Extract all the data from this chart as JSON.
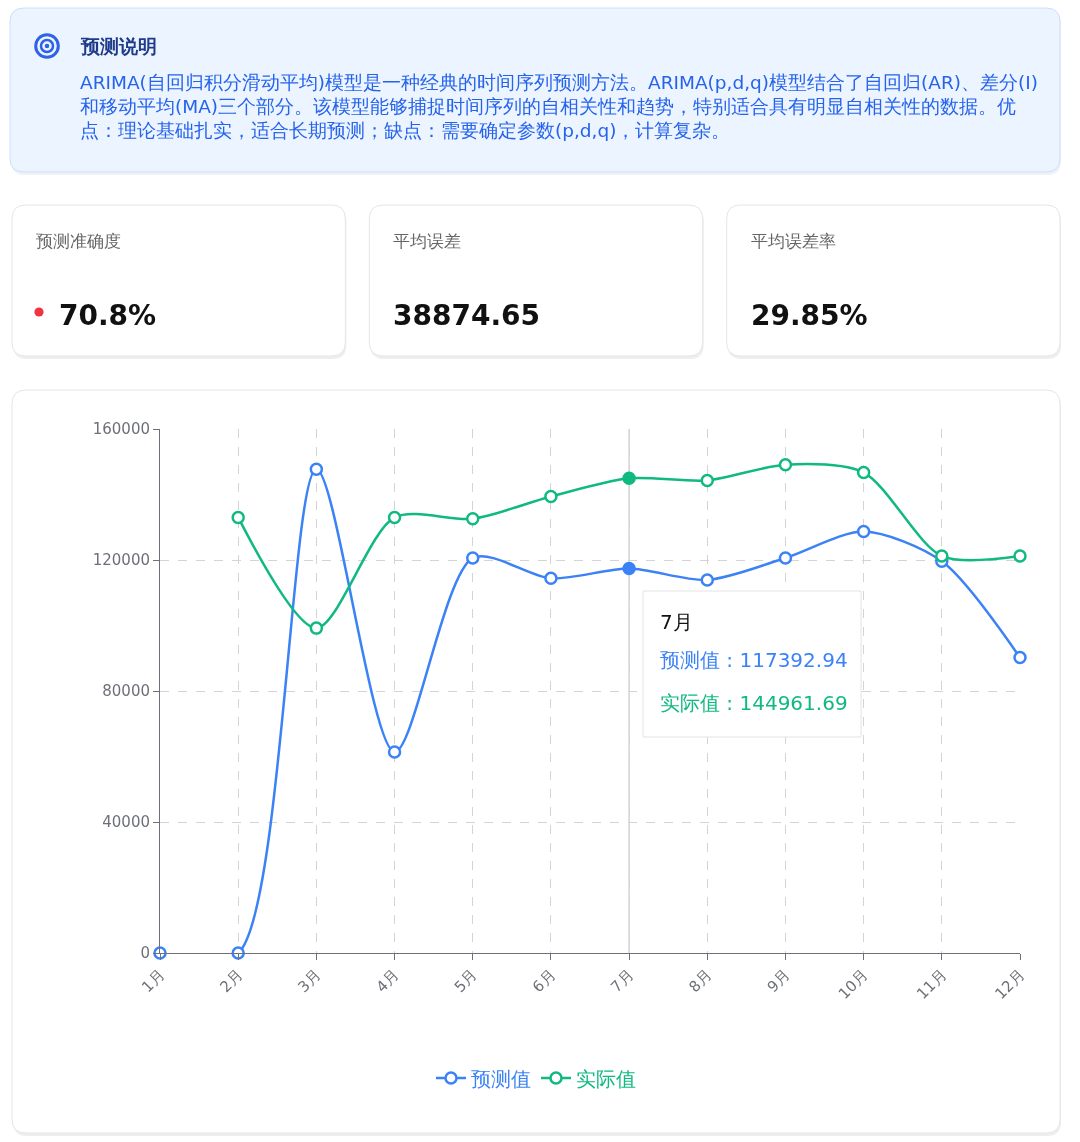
{
  "chart_data": [
    {
      "type": "other",
      "title": "预测说明",
      "annotations": [
        "ARIMA(自回归积分滑动平均)模型是一种经典的时间序列预测方法。ARIMA(p,d,q)模型结合了自回归(AR)、差分(I)和移动平均(MA)三个部分。该模型能够捕捉时间序列的自相关性和趋势，特别适合具有明显自相关性的数据。优点：理论基础扎实，适合长期预测；缺点：需要确定参数(p,d,q)，计算复杂。"
      ]
    },
    {
      "type": "other",
      "categories": [
        "预测准确度",
        "平均误差",
        "平均误差率"
      ],
      "value_labels": [
        "70.8%",
        "38874.65",
        "29.85%"
      ]
    },
    {
      "type": "line",
      "categories": [
        "1月",
        "2月",
        "3月",
        "4月",
        "5月",
        "6月",
        "7月",
        "8月",
        "9月",
        "10月",
        "11月",
        "12月"
      ],
      "series": [
        {
          "name": "预测值",
          "color": "#3b82f6",
          "values": [
            0,
            0,
            147700,
            61400,
            120600,
            114400,
            117392.94,
            113900,
            120600,
            128700,
            119600,
            90200
          ]
        },
        {
          "name": "实际值",
          "color": "#10b981",
          "values": [
            null,
            133000,
            99200,
            133000,
            132600,
            139400,
            144961.69,
            144300,
            149100,
            146700,
            121200,
            121200
          ]
        }
      ],
      "ylim": [
        0,
        160000
      ],
      "yticks": [
        0,
        40000,
        80000,
        120000,
        160000
      ],
      "grid": true,
      "legend": "bottom",
      "marker": "circle",
      "line_style": "solid",
      "ref_lines": [
        {
          "axis": "x",
          "value": "7月",
          "color": "#c8c8c8"
        }
      ],
      "annotations": [
        {
          "text": "7月",
          "x": "7月"
        },
        {
          "text": "预测值 : 117392.94",
          "x": "7月"
        },
        {
          "text": "实际值 : 144961.69",
          "x": "7月"
        }
      ]
    }
  ]
}
